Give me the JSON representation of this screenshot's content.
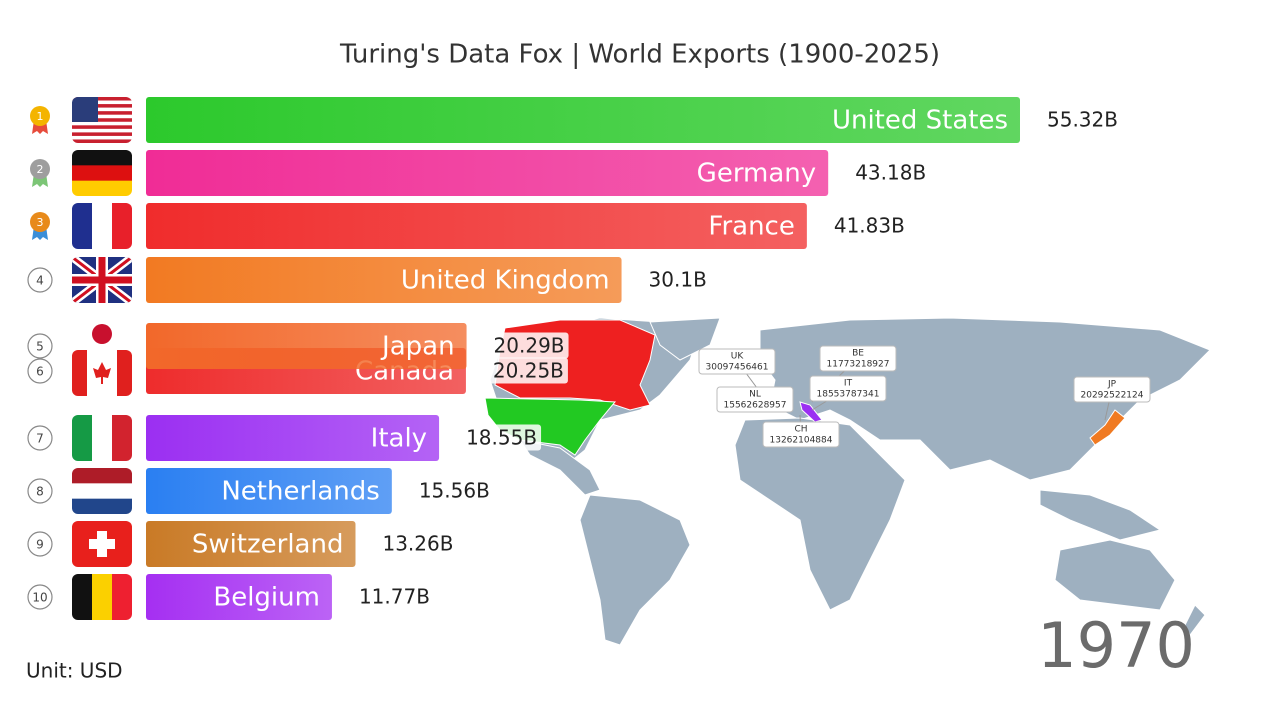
{
  "chart_data": {
    "type": "bar",
    "orientation": "horizontal",
    "title": "Turing's Data Fox | World Exports (1900-2025)",
    "categories": [
      "United States",
      "Germany",
      "France",
      "United Kingdom",
      "Japan",
      "Canada",
      "Italy",
      "Netherlands",
      "Switzerland",
      "Belgium"
    ],
    "values": [
      55.32,
      43.18,
      41.83,
      30.1,
      20.29,
      20.25,
      18.55,
      15.56,
      13.26,
      11.77
    ],
    "value_labels": [
      "55.32B",
      "43.18B",
      "41.83B",
      "30.1B",
      "20.29B",
      "20.25B",
      "18.55B",
      "15.56B",
      "13.26B",
      "11.77B"
    ],
    "colors": [
      "#2cc92c",
      "#f02c96",
      "#f02c2c",
      "#f27a22",
      "#f2682a",
      "#ee2c2c",
      "#9b2ff2",
      "#2a7ff2",
      "#c97a26",
      "#a52ff2"
    ],
    "ranks": [
      1,
      2,
      3,
      4,
      5,
      6,
      7,
      8,
      9,
      10
    ],
    "year": "1970",
    "unit_note": "Unit: USD",
    "map_labels": [
      {
        "code": "UK",
        "value": "30097456461"
      },
      {
        "code": "BE",
        "value": "11773218927"
      },
      {
        "code": "IT",
        "value": "18553787341"
      },
      {
        "code": "NL",
        "value": "15562628957"
      },
      {
        "code": "CH",
        "value": "13262104884"
      },
      {
        "code": "JP",
        "value": "20292522124"
      }
    ]
  }
}
